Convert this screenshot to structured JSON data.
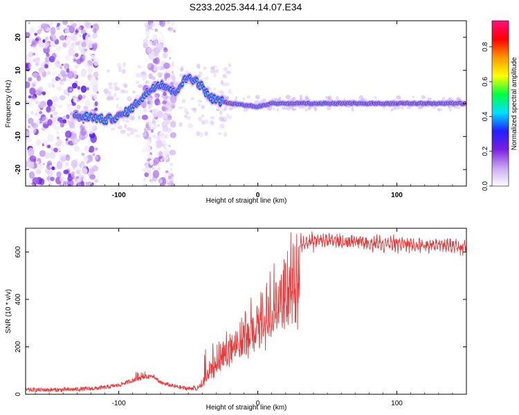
{
  "figure": {
    "title": "S233.2025.344.14.07.E34"
  },
  "chart_data": [
    {
      "type": "heatmap",
      "name": "spectrogram",
      "xlabel": "Height of straight line (km)",
      "ylabel": "Frequency (Hz)",
      "xlim": [
        -167,
        150
      ],
      "ylim": [
        -25,
        25
      ],
      "xticks": [
        -100,
        0,
        100
      ],
      "xtick_labels": [
        "-100",
        "0",
        "100"
      ],
      "yticks": [
        -20,
        -10,
        0,
        10,
        20
      ],
      "ytick_labels": [
        "-20",
        "-10",
        "0",
        "10",
        "20"
      ],
      "colorbar": {
        "label": "Normalized spectral amplitude",
        "range": [
          0.0,
          0.95
        ],
        "ticks": [
          0.0,
          0.2,
          0.4,
          0.6,
          0.8
        ],
        "tick_labels": [
          "0.0",
          "0.2",
          "0.4",
          "0.6",
          "0.8"
        ],
        "colors": [
          "#ffffff",
          "#c8a6f0",
          "#7a1fe0",
          "#2020ff",
          "#00e0ff",
          "#00ff40",
          "#ffff00",
          "#ff9900",
          "#ff0000",
          "#ff1080"
        ]
      },
      "ridge": {
        "x": [
          -130,
          -120,
          -110,
          -100,
          -92,
          -85,
          -80,
          -75,
          -70,
          -65,
          -60,
          -55,
          -50,
          -45,
          -40,
          -35,
          -30,
          -25,
          -20,
          -10,
          0,
          10,
          20,
          50,
          100,
          150
        ],
        "y": [
          -4,
          -4,
          -5,
          -4,
          -2,
          1,
          3,
          5,
          6,
          5,
          3,
          6,
          8,
          7,
          5,
          2,
          1,
          0.5,
          0,
          -0.5,
          -1,
          0,
          0,
          0,
          0,
          0
        ]
      },
      "noise_regions": [
        {
          "x_range": [
            -167,
            -115
          ],
          "level": "strong"
        },
        {
          "x_range": [
            -82,
            -60
          ],
          "level": "medium"
        }
      ]
    },
    {
      "type": "line",
      "name": "snr",
      "xlabel": "Height of straight line (km)",
      "ylabel": "SNR (10 * v/v)",
      "xlim": [
        -167,
        150
      ],
      "ylim": [
        0,
        700
      ],
      "xticks": [
        -100,
        0,
        100
      ],
      "xtick_labels": [
        "-100",
        "0",
        "100"
      ],
      "yticks": [
        0,
        200,
        400,
        600
      ],
      "ytick_labels": [
        "0",
        "200",
        "400",
        "600"
      ],
      "series": [
        {
          "name": "SNR",
          "color": "#e8393a",
          "envelope_x": [
            -167,
            -140,
            -120,
            -110,
            -100,
            -90,
            -80,
            -75,
            -70,
            -60,
            -50,
            -45,
            -40,
            -35,
            -30,
            -25,
            -20,
            -15,
            -10,
            -5,
            0,
            5,
            10,
            15,
            20,
            25,
            30,
            40,
            50,
            60,
            80,
            100,
            120,
            150
          ],
          "envelope_y": [
            15,
            15,
            20,
            25,
            35,
            55,
            70,
            75,
            45,
            30,
            20,
            25,
            60,
            120,
            180,
            230,
            270,
            300,
            320,
            350,
            380,
            420,
            460,
            520,
            580,
            620,
            635,
            645,
            650,
            645,
            640,
            635,
            630,
            625
          ]
        }
      ]
    }
  ]
}
